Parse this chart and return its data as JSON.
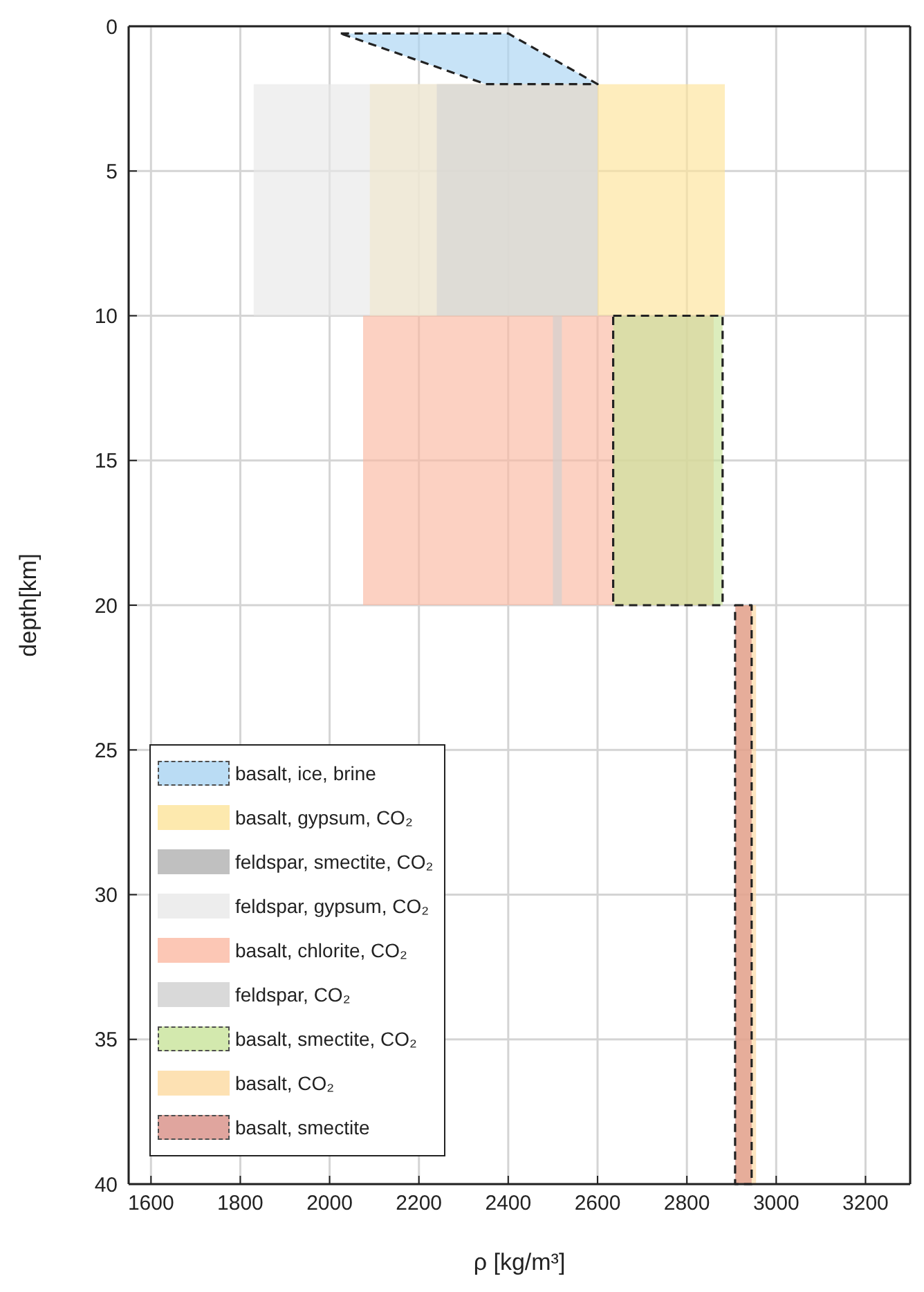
{
  "chart_data": {
    "type": "area",
    "xlabel": "ρ [kg/m³]",
    "ylabel": "depth[km]",
    "xlim": [
      1550,
      3300
    ],
    "xticks": [
      1600,
      1800,
      2000,
      2200,
      2400,
      2600,
      2800,
      3000,
      3200
    ],
    "ylim": [
      40,
      0
    ],
    "yticks": [
      0,
      5,
      10,
      15,
      20,
      25,
      30,
      35,
      40
    ],
    "grid": true,
    "legend": "bottom left",
    "series": [
      {
        "name": "basalt, ice, brine",
        "color": "#a9d4f2",
        "line_style": "dashed",
        "x": [
          2025,
          2350,
          2400,
          2600
        ],
        "values": [
          null,
          null,
          null,
          null
        ],
        "lower": [
          0.25,
          0.25,
          0.25,
          2
        ],
        "upper": [
          0.25,
          2,
          2,
          2
        ]
      },
      {
        "name": "basalt, gypsum, CO₂",
        "color": "#fde39a",
        "x": [
          2090,
          2885
        ],
        "values": [
          null,
          null
        ],
        "lower": [
          2,
          2
        ],
        "upper": [
          10,
          10
        ]
      },
      {
        "name": "feldspar, smectite, CO₂",
        "color": "#b0b0b0",
        "x": [
          2240,
          2600
        ],
        "values": [
          null,
          null
        ],
        "lower": [
          2,
          2
        ],
        "upper": [
          10,
          10
        ]
      },
      {
        "name": "feldspar, gypsum, CO₂",
        "color": "#e8e8e8",
        "x": [
          1830,
          2600
        ],
        "values": [
          null,
          null
        ],
        "lower": [
          2,
          2
        ],
        "upper": [
          10,
          10
        ]
      },
      {
        "name": "basalt, chlorite, CO₂",
        "color": "#fbb9a2",
        "x": [
          2075,
          2860
        ],
        "values": [
          null,
          null
        ],
        "lower": [
          10,
          10
        ],
        "upper": [
          20,
          20
        ]
      },
      {
        "name": "feldspar, CO₂",
        "color": "#cfcfcf",
        "x": [
          2500,
          2520
        ],
        "values": [
          null,
          null
        ],
        "lower": [
          10,
          10
        ],
        "upper": [
          20,
          20
        ]
      },
      {
        "name": "basalt, smectite, CO₂",
        "color": "#c9e49a",
        "line_style": "dashed",
        "x": [
          2635,
          2880
        ],
        "values": [
          null,
          null
        ],
        "lower": [
          10,
          10
        ],
        "upper": [
          20,
          20
        ]
      },
      {
        "name": "basalt, CO₂",
        "color": "#fdd9a0",
        "x": [
          2910,
          2955
        ],
        "values": [
          null,
          null
        ],
        "lower": [
          20,
          20
        ],
        "upper": [
          40,
          40
        ]
      },
      {
        "name": "basalt, smectite",
        "color": "#d98f86",
        "line_style": "dashed",
        "x": [
          2908,
          2945
        ],
        "values": [
          null,
          null
        ],
        "lower": [
          20,
          20
        ],
        "upper": [
          40,
          40
        ]
      }
    ]
  }
}
